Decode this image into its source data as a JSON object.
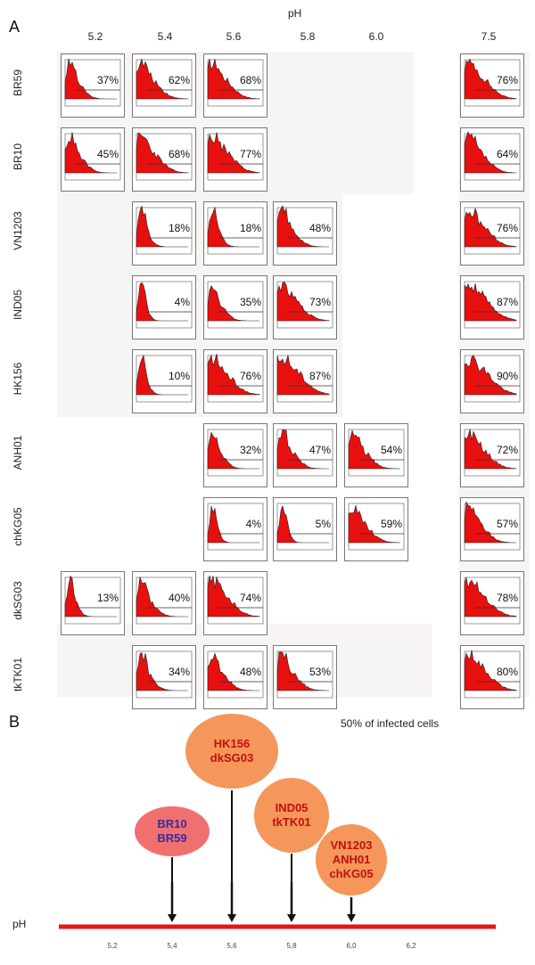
{
  "panel_a": {
    "letter": "A",
    "axis_title": "pH",
    "ph_columns": [
      "5.2",
      "5.4",
      "5.6",
      "5.8",
      "6.0",
      "7.5"
    ],
    "rows": [
      {
        "label": "BR59",
        "cells": [
          {
            "ph": "5.2",
            "value": "37%"
          },
          {
            "ph": "5.4",
            "value": "62%"
          },
          {
            "ph": "5.6",
            "value": "68%"
          },
          {
            "ph": "7.5",
            "value": "76%"
          }
        ]
      },
      {
        "label": "BR10",
        "cells": [
          {
            "ph": "5.2",
            "value": "45%"
          },
          {
            "ph": "5.4",
            "value": "68%"
          },
          {
            "ph": "5.6",
            "value": "77%"
          },
          {
            "ph": "7.5",
            "value": "64%"
          }
        ]
      },
      {
        "label": "VN1203",
        "cells": [
          {
            "ph": "5.4",
            "value": "18%"
          },
          {
            "ph": "5.6",
            "value": "18%"
          },
          {
            "ph": "5.8",
            "value": "48%"
          },
          {
            "ph": "7.5",
            "value": "76%"
          }
        ]
      },
      {
        "label": "IND05",
        "cells": [
          {
            "ph": "5.4",
            "value": "4%"
          },
          {
            "ph": "5.6",
            "value": "35%"
          },
          {
            "ph": "5.8",
            "value": "73%"
          },
          {
            "ph": "7.5",
            "value": "87%"
          }
        ]
      },
      {
        "label": "HK156",
        "cells": [
          {
            "ph": "5.4",
            "value": "10%"
          },
          {
            "ph": "5.6",
            "value": "76%"
          },
          {
            "ph": "5.8",
            "value": "87%"
          },
          {
            "ph": "7.5",
            "value": "90%"
          }
        ]
      },
      {
        "label": "ANH01",
        "cells": [
          {
            "ph": "5.6",
            "value": "32%"
          },
          {
            "ph": "5.8",
            "value": "47%"
          },
          {
            "ph": "6.0",
            "value": "54%"
          },
          {
            "ph": "7.5",
            "value": "72%"
          }
        ]
      },
      {
        "label": "chKG05",
        "cells": [
          {
            "ph": "5.6",
            "value": "4%"
          },
          {
            "ph": "5.8",
            "value": "5%"
          },
          {
            "ph": "6.0",
            "value": "59%"
          },
          {
            "ph": "7.5",
            "value": "57%"
          }
        ]
      },
      {
        "label": "dkSG03",
        "cells": [
          {
            "ph": "5.2",
            "value": "13%"
          },
          {
            "ph": "5.4",
            "value": "40%"
          },
          {
            "ph": "5.6",
            "value": "74%"
          },
          {
            "ph": "7.5",
            "value": "78%"
          }
        ]
      },
      {
        "label": "tkTK01",
        "cells": [
          {
            "ph": "5.4",
            "value": "34%"
          },
          {
            "ph": "5.6",
            "value": "48%"
          },
          {
            "ph": "5.8",
            "value": "53%"
          },
          {
            "ph": "7.5",
            "value": "80%"
          }
        ]
      }
    ]
  },
  "panel_b": {
    "letter": "B",
    "caption": "50% of infected cells",
    "axis_label": "pH",
    "ticks": [
      "5,2",
      "5,4",
      "5,6",
      "5,8",
      "6,0",
      "6,2"
    ],
    "groups": [
      {
        "ph": 5.4,
        "strains": [
          "BR10",
          "BR59"
        ],
        "fill": "#f07070",
        "text_color": "#3a2aa0"
      },
      {
        "ph": 5.6,
        "strains": [
          "HK156",
          "dkSG03"
        ],
        "fill": "#f5965a",
        "text_color": "#c01010"
      },
      {
        "ph": 5.8,
        "strains": [
          "IND05",
          "tkTK01"
        ],
        "fill": "#f5965a",
        "text_color": "#c01010"
      },
      {
        "ph": 6.0,
        "strains": [
          "VN1203",
          "ANH01",
          "chKG05"
        ],
        "fill": "#f5965a",
        "text_color": "#c01010"
      }
    ],
    "axis_color": "#e01818"
  }
}
